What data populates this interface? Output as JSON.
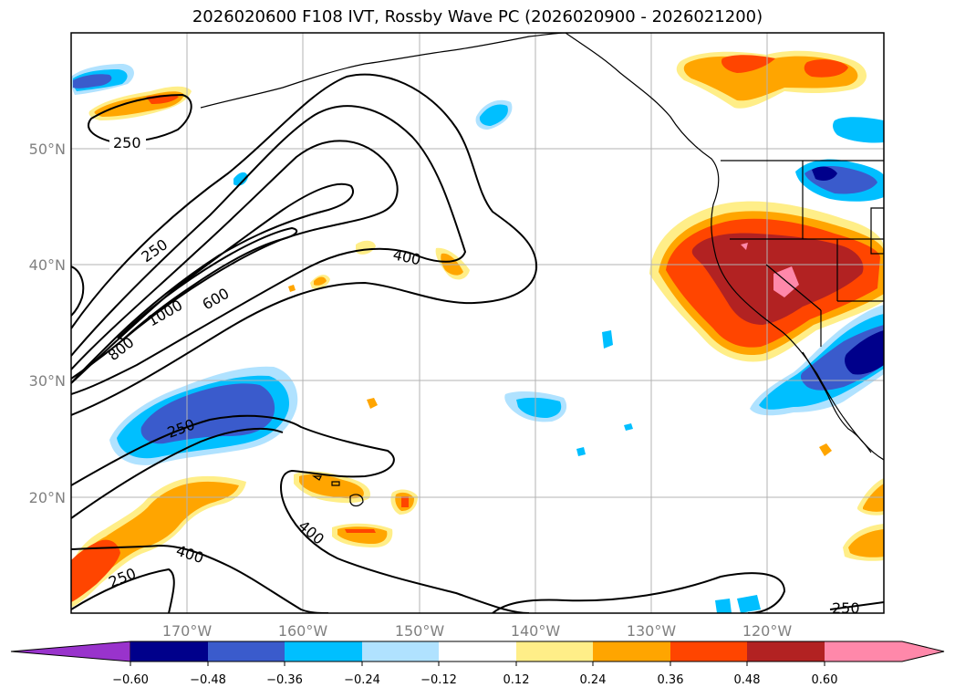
{
  "title": "2026020600 F108 IVT, Rossby Wave PC (2026020900 - 2026021200)",
  "latitude_labels": [
    "50°N",
    "40°N",
    "30°N",
    "20°N"
  ],
  "longitude_labels": [
    "170°W",
    "160°W",
    "150°W",
    "140°W",
    "130°W",
    "120°W"
  ],
  "contour_labels": [
    "250",
    "250",
    "1000",
    "600",
    "800",
    "400",
    "250",
    "400",
    "400",
    "250",
    "250"
  ],
  "colorbar": {
    "ticks": [
      "−0.60",
      "−0.48",
      "−0.36",
      "−0.24",
      "−0.12",
      "0.12",
      "0.24",
      "0.36",
      "0.48",
      "0.60"
    ],
    "colors": [
      "#9933cc",
      "#00008b",
      "#3a5bcc",
      "#00bfff",
      "#b0e2ff",
      "#ffffff",
      "#ffee88",
      "#ffa500",
      "#ff4500",
      "#b22222",
      "#ff88aa",
      "#ff88aa"
    ]
  },
  "colors": {
    "neg1": "#b0e2ff",
    "neg2": "#00bfff",
    "neg3": "#3a5bcc",
    "neg4": "#00008b",
    "pos1": "#ffee88",
    "pos2": "#ffa500",
    "pos3": "#ff4500",
    "pos4": "#b22222",
    "pos5": "#ff88aa"
  }
}
